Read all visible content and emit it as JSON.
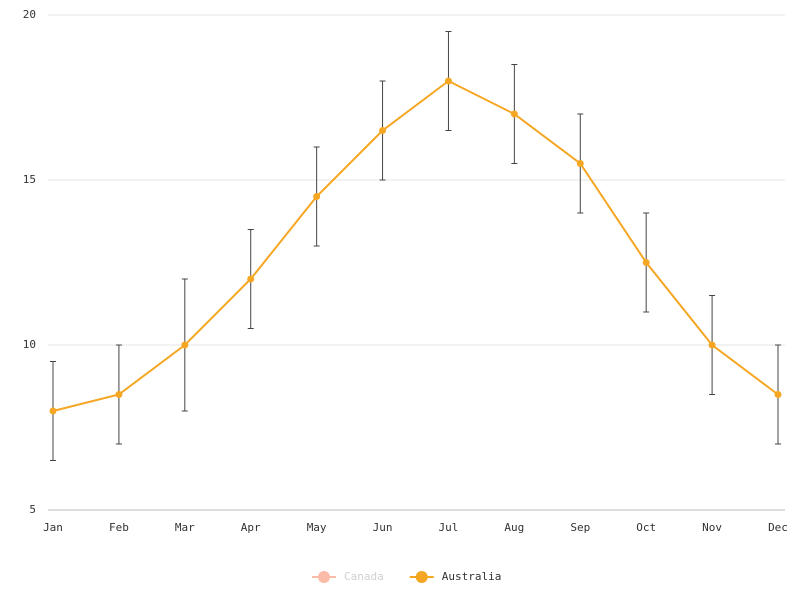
{
  "chart_data": {
    "type": "line",
    "categories": [
      "Jan",
      "Feb",
      "Mar",
      "Apr",
      "May",
      "Jun",
      "Jul",
      "Aug",
      "Sep",
      "Oct",
      "Nov",
      "Dec"
    ],
    "series": [
      {
        "name": "Canada",
        "color": "#fbb4a0",
        "visible": false
      },
      {
        "name": "Australia",
        "color": "#f5a623",
        "visible": true,
        "values": [
          8,
          8.5,
          10,
          12,
          14.5,
          16.5,
          18,
          17,
          15.5,
          12.5,
          10,
          8.5
        ],
        "errors": [
          1.5,
          1.5,
          2,
          1.5,
          1.5,
          1.5,
          1.5,
          1.5,
          1.5,
          1.5,
          1.5,
          1.5
        ]
      }
    ],
    "ylim": [
      5,
      20
    ],
    "yticks": [
      5,
      10,
      15,
      20
    ],
    "grid": true
  }
}
